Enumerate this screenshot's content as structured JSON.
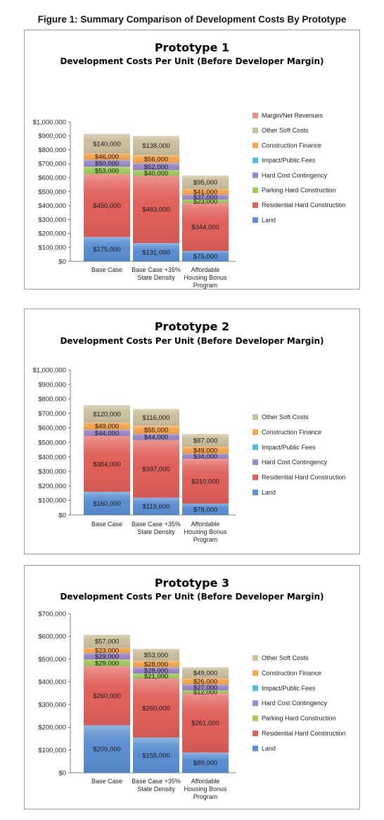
{
  "figure_title": "Figure 1: Summary Comparison of Development Costs By Prototype",
  "colors": {
    "Land": "#5b8fd1",
    "Residential Hard Construction": "#e0605a",
    "Parking Hard Construction": "#9fc95a",
    "Hard Cost Contingency": "#9b88c4",
    "Impact/Public Fees": "#4fc0d6",
    "Construction Finance": "#f5a550",
    "Other Soft Costs": "#cbbf9e",
    "Margin/Net Revenues": "#e58f8a"
  },
  "chart_data": [
    {
      "type": "bar",
      "stacked": true,
      "title": "Prototype 1",
      "subtitle": "Development Costs Per Unit (Before Developer Margin)",
      "categories": [
        "Base Case",
        "Base Case +35% State Density",
        "Affordable Housing Bonus Program"
      ],
      "category_lines": [
        [
          "Base Case"
        ],
        [
          "Base Case +35%",
          "State Density"
        ],
        [
          "Affordable",
          "Housing Bonus",
          "Program"
        ]
      ],
      "ylim": [
        0,
        1000000
      ],
      "yticks": [
        0,
        100000,
        200000,
        300000,
        400000,
        500000,
        600000,
        700000,
        800000,
        900000,
        1000000
      ],
      "ytick_labels": [
        "$0",
        "$100,000",
        "$200,000",
        "$300,000",
        "$400,000",
        "$500,000",
        "$600,000",
        "$700,000",
        "$800,000",
        "$900,000",
        "$1,000,000"
      ],
      "series": [
        {
          "name": "Land",
          "values": [
            175000,
            131000,
            75000
          ],
          "labels": [
            "$175,000",
            "$131,000",
            "$75,000"
          ]
        },
        {
          "name": "Residential Hard Construction",
          "values": [
            450000,
            483000,
            344000
          ],
          "labels": [
            "$450,000",
            "$483,000",
            "$344,000"
          ]
        },
        {
          "name": "Parking Hard Construction",
          "values": [
            53000,
            40000,
            23000
          ],
          "labels": [
            "$53,000",
            "$40,000",
            "$23,000"
          ]
        },
        {
          "name": "Hard Cost Contingency",
          "values": [
            50000,
            52000,
            37000
          ],
          "labels": [
            "$50,000",
            "$52,000",
            "$37,000"
          ]
        },
        {
          "name": "Construction Finance",
          "values": [
            46000,
            56000,
            41000
          ],
          "labels": [
            "$46,000",
            "$56,000",
            "$41,000"
          ]
        },
        {
          "name": "Other Soft Costs",
          "values": [
            140000,
            138000,
            95000
          ],
          "labels": [
            "$140,000",
            "$138,000",
            "$95,000"
          ]
        }
      ],
      "legend": [
        "Margin/Net Revenues",
        "Other Soft Costs",
        "Construction Finance",
        "Impact/Public Fees",
        "Hard Cost Contingency",
        "Parking Hard Construction",
        "Residential Hard Construction",
        "Land"
      ],
      "legend_placement": "right",
      "grid": false
    },
    {
      "type": "bar",
      "stacked": true,
      "title": "Prototype 2",
      "subtitle": "Development Costs Per Unit (Before Developer Margin)",
      "categories": [
        "Base Case",
        "Base Case +35% State Density",
        "Affordable Housing Bonus Program"
      ],
      "category_lines": [
        [
          "Base Case"
        ],
        [
          "Base Case +35%",
          "State Density"
        ],
        [
          "Affordable",
          "Housing Bonus",
          "Program"
        ]
      ],
      "ylim": [
        0,
        1000000
      ],
      "yticks": [
        0,
        100000,
        200000,
        300000,
        400000,
        500000,
        600000,
        700000,
        800000,
        900000,
        1000000
      ],
      "ytick_labels": [
        "$0",
        "$100,000",
        "$200,000",
        "$300,000",
        "$400,000",
        "$500,000",
        "$600,000",
        "$700,000",
        "$800,000",
        "$900,000",
        "$1,000,000"
      ],
      "series": [
        {
          "name": "Land",
          "values": [
            160000,
            119000,
            78000
          ],
          "labels": [
            "$160,000",
            "$119,000",
            "$78,000"
          ]
        },
        {
          "name": "Residential Hard Construction",
          "values": [
            384000,
            397000,
            310000
          ],
          "labels": [
            "$384,000",
            "$397,000",
            "$310,000"
          ]
        },
        {
          "name": "Hard Cost Contingency",
          "values": [
            44000,
            44000,
            34000
          ],
          "labels": [
            "$44,000",
            "$44,000",
            "$34,000"
          ]
        },
        {
          "name": "Construction Finance",
          "values": [
            49000,
            55000,
            49000
          ],
          "labels": [
            "$49,000",
            "$55,000",
            "$49,000"
          ]
        },
        {
          "name": "Other Soft Costs",
          "values": [
            120000,
            116000,
            87000
          ],
          "labels": [
            "$120,000",
            "$116,000",
            "$87,000"
          ]
        }
      ],
      "legend": [
        "Other Soft Costs",
        "Construction Finance",
        "Impact/Public Fees",
        "Hard Cost Contingency",
        "Residential Hard Construction",
        "Land"
      ],
      "legend_placement": "right",
      "grid": false
    },
    {
      "type": "bar",
      "stacked": true,
      "title": "Prototype 3",
      "subtitle": "Development Costs Per Unit (Before Developer Margin)",
      "categories": [
        "Base Case",
        "Base Case +35% State Density",
        "Affordable Housing Bonus Program"
      ],
      "category_lines": [
        [
          "Base Case"
        ],
        [
          "Base Case +35%",
          "State Density"
        ],
        [
          "Affordable",
          "Housing Bonus",
          "Program"
        ]
      ],
      "ylim": [
        0,
        700000
      ],
      "yticks": [
        0,
        100000,
        200000,
        300000,
        400000,
        500000,
        600000,
        700000
      ],
      "ytick_labels": [
        "$0",
        "$100,000",
        "$200,000",
        "$300,000",
        "$400,000",
        "$500,000",
        "$600,000",
        "$700,000"
      ],
      "series": [
        {
          "name": "Land",
          "values": [
            209000,
            155000,
            89000
          ],
          "labels": [
            "$209,000",
            "$155,000",
            "$89,000"
          ]
        },
        {
          "name": "Residential Hard Construction",
          "values": [
            260000,
            260000,
            261000
          ],
          "labels": [
            "$260,000",
            "$260,000",
            "$261,000"
          ]
        },
        {
          "name": "Parking Hard Construction",
          "values": [
            29000,
            21000,
            12000
          ],
          "labels": [
            "$29,000",
            "$21,000",
            "$12,000"
          ]
        },
        {
          "name": "Hard Cost Contingency",
          "values": [
            29000,
            28000,
            27000
          ],
          "labels": [
            "$29,000",
            "$28,000",
            "$27,000"
          ]
        },
        {
          "name": "Construction Finance",
          "values": [
            23000,
            28000,
            26000
          ],
          "labels": [
            "$23,000",
            "$28,000",
            "$26,000"
          ]
        },
        {
          "name": "Other Soft Costs",
          "values": [
            57000,
            53000,
            49000
          ],
          "labels": [
            "$57,000",
            "$53,000",
            "$49,000"
          ]
        }
      ],
      "legend": [
        "Other Soft Costs",
        "Construction Finance",
        "Impact/Public Fees",
        "Hard Cost Contingency",
        "Parking Hard Construction",
        "Residential Hard Construction",
        "Land"
      ],
      "legend_placement": "right",
      "grid": false
    }
  ]
}
